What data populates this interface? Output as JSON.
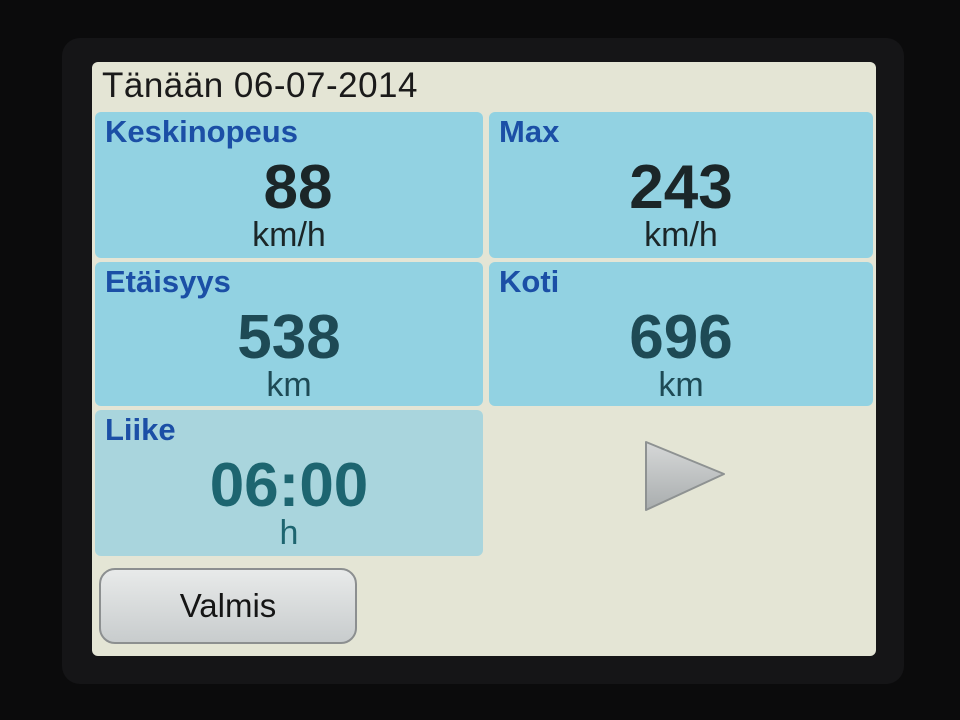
{
  "header": {
    "title": "Tänään 06-07-2014"
  },
  "tiles": [
    {
      "label": "Keskinopeus",
      "value": "88",
      "unit": "km/h"
    },
    {
      "label": "Max",
      "value": "243",
      "unit": "km/h"
    },
    {
      "label": "Etäisyys",
      "value": "538",
      "unit": "km"
    },
    {
      "label": "Koti",
      "value": "696",
      "unit": "km"
    },
    {
      "label": "Liike",
      "value": "06:00",
      "unit": "h"
    }
  ],
  "next": {
    "icon": "triangle-right-icon"
  },
  "footer": {
    "done_label": "Valmis"
  },
  "colors": {
    "tile": "#92d2e2",
    "label": "#1b4fa6",
    "background": "#e4e5d5"
  }
}
